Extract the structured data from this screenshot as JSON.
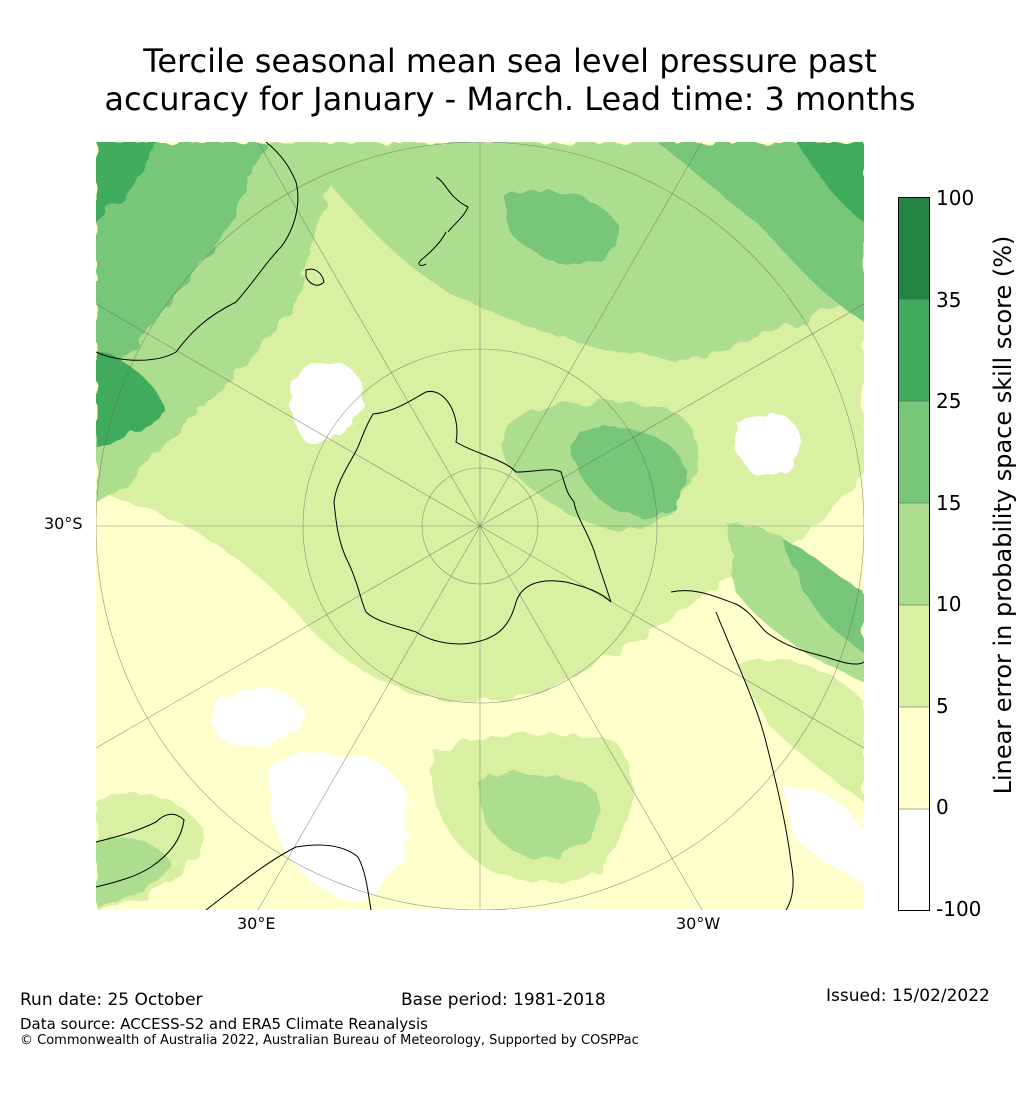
{
  "title": {
    "line1": "Tercile seasonal mean sea level pressure past",
    "line2": "accuracy for January - March. Lead time: 3 months"
  },
  "map": {
    "projection": "south-polar stereographic",
    "lon_labels": [
      "30°E",
      "30°W"
    ],
    "lat_labels": [
      "30°S"
    ]
  },
  "colorbar": {
    "label": "Linear error in probability space skill score (%)",
    "ticks": [
      "100",
      "35",
      "25",
      "15",
      "10",
      "5",
      "0",
      "-100"
    ],
    "bands": [
      {
        "from": "35",
        "to": "100",
        "color": "#238443"
      },
      {
        "from": "25",
        "to": "35",
        "color": "#41ab5d"
      },
      {
        "from": "15",
        "to": "25",
        "color": "#78c679"
      },
      {
        "from": "10",
        "to": "15",
        "color": "#addd8e"
      },
      {
        "from": "5",
        "to": "10",
        "color": "#d9f0a3"
      },
      {
        "from": "0",
        "to": "5",
        "color": "#ffffcc"
      },
      {
        "from": "-100",
        "to": "0",
        "color": "#ffffff"
      }
    ]
  },
  "footer": {
    "run_date": "Run date: 25 October",
    "base_period": "Base period: 1981-2018",
    "issued": "Issued: 15/02/2022",
    "data_source": "Data source: ACCESS-S2 and ERA5 Climate Reanalysis",
    "copyright": "© Commonwealth of Australia 2022, Australian Bureau of Meteorology, Supported by COSPPac"
  }
}
